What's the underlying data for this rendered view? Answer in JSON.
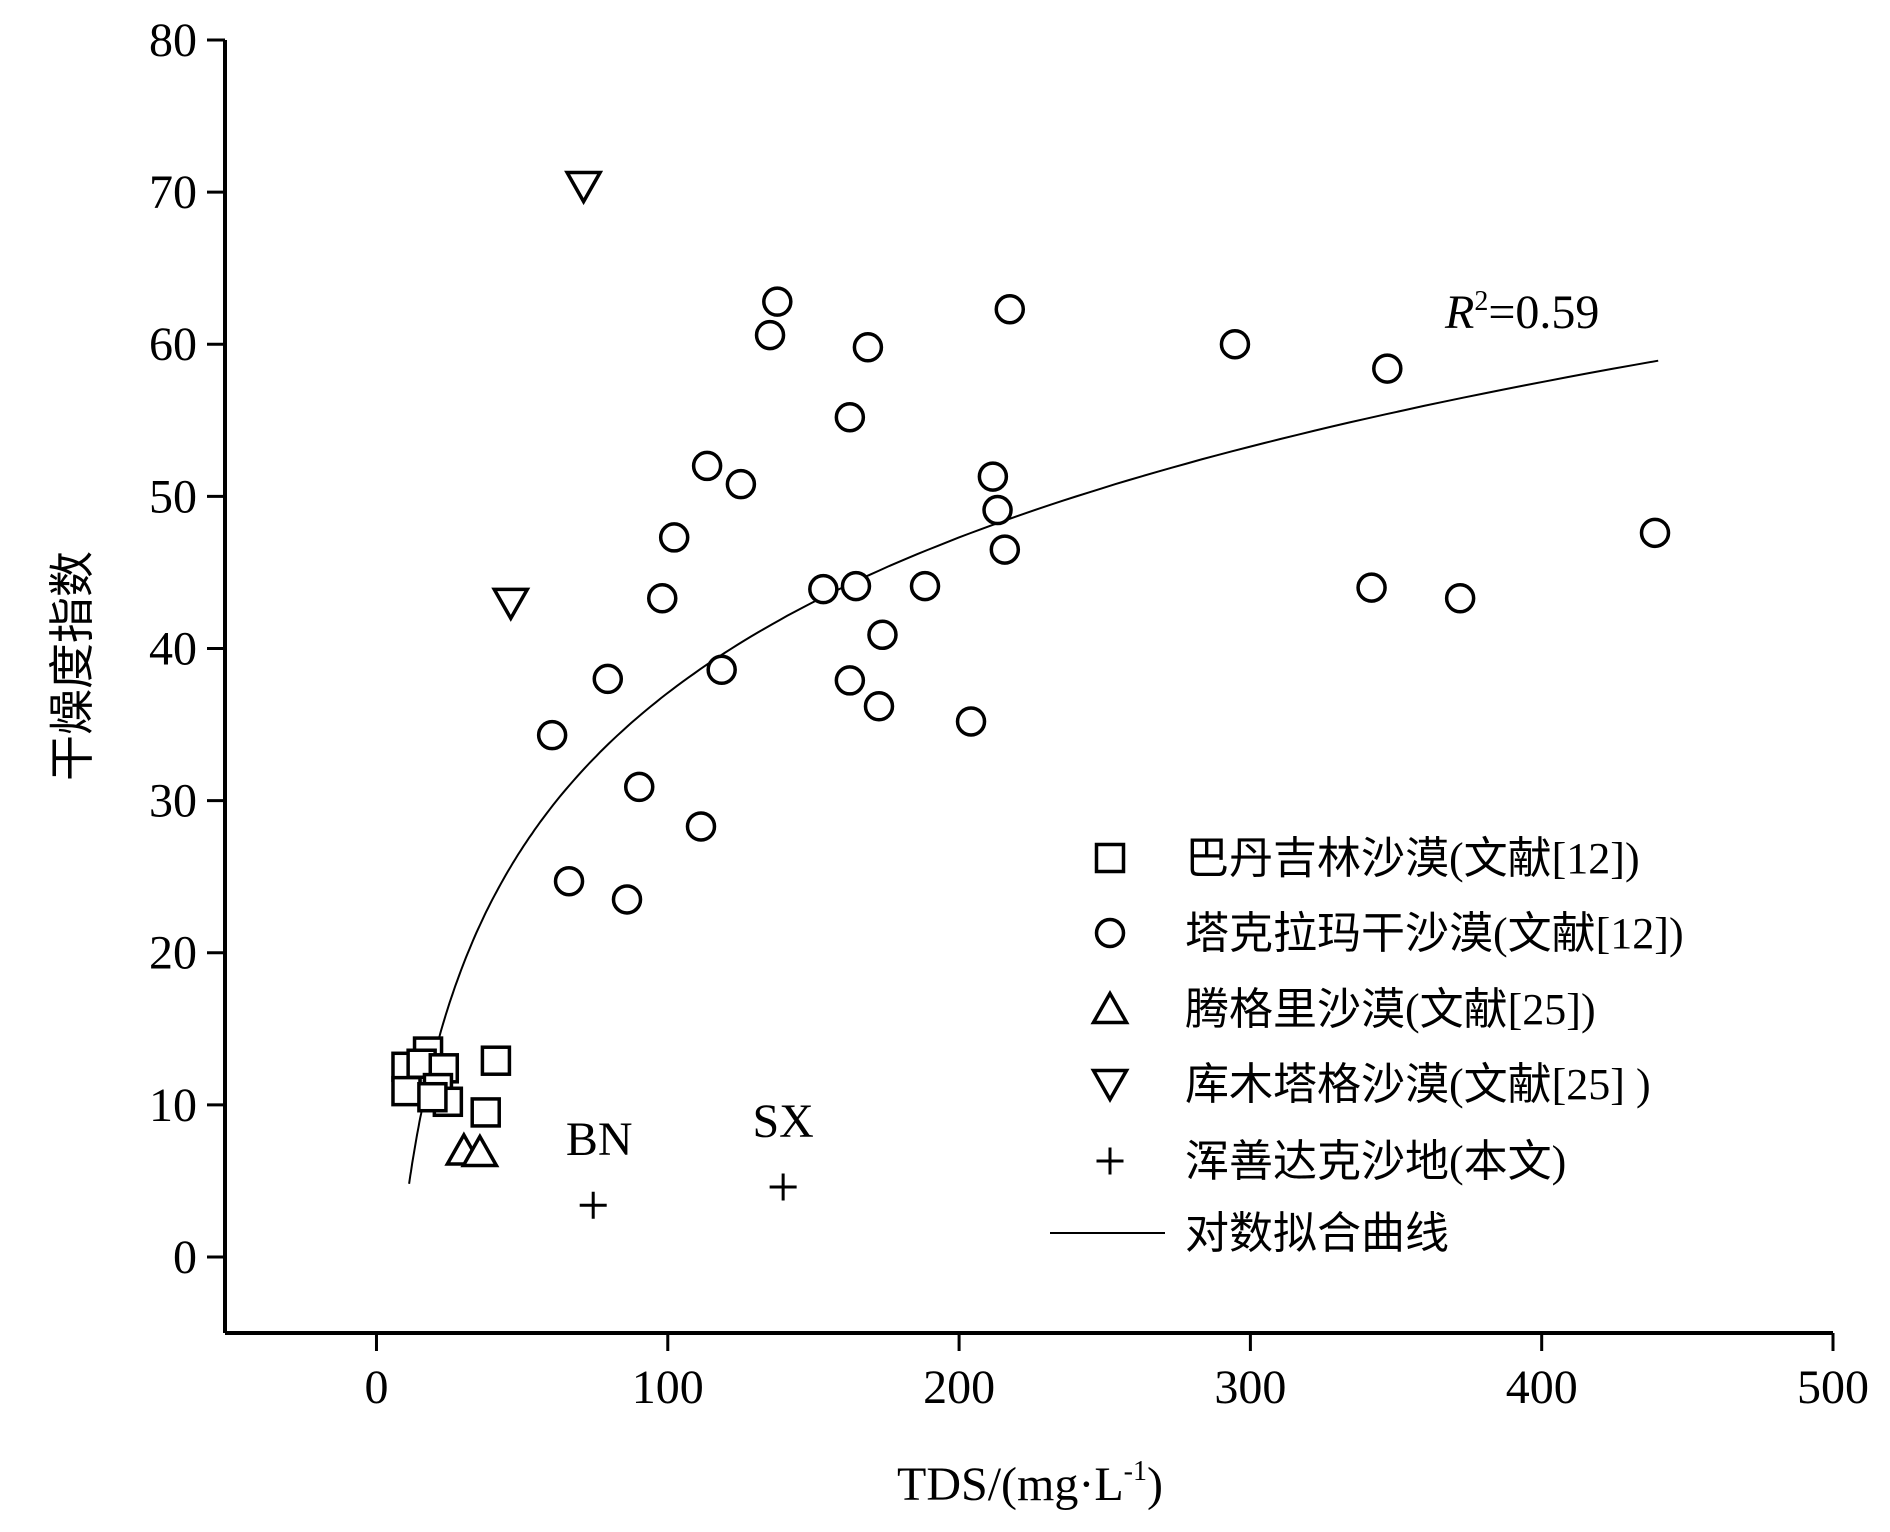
{
  "chart_data": {
    "type": "scatter",
    "title": "",
    "xlabel": "TDS/(mg·L",
    "xlabel_sup": "-1",
    "xlabel_end": ")",
    "ylabel": "干燥度指数",
    "xlim": [
      -52,
      500
    ],
    "ylim": [
      -5,
      80
    ],
    "xticks": [
      0,
      100,
      200,
      300,
      400,
      500
    ],
    "yticks": [
      0,
      10,
      20,
      30,
      40,
      50,
      60,
      70,
      80
    ],
    "grid": false,
    "legend_position": "bottom-right",
    "series": [
      {
        "name": "巴丹吉林沙漠(文献[12])",
        "marker": "square",
        "points": [
          [
            10.3,
            12.5
          ],
          [
            10.3,
            10.9
          ],
          [
            17.7,
            13.5
          ],
          [
            15.5,
            12.7
          ],
          [
            23.1,
            12.4
          ],
          [
            21.1,
            11.1
          ],
          [
            24.5,
            10.2
          ],
          [
            19.2,
            10.5
          ],
          [
            41,
            12.9
          ],
          [
            37.5,
            9.5
          ]
        ]
      },
      {
        "name": "塔克拉玛干沙漠(文献[12])",
        "marker": "circle",
        "points": [
          [
            137.6,
            62.8
          ],
          [
            135.1,
            60.6
          ],
          [
            217.4,
            62.3
          ],
          [
            168.7,
            59.8
          ],
          [
            294.7,
            60.0
          ],
          [
            347,
            58.4
          ],
          [
            162.5,
            55.2
          ],
          [
            113.5,
            52.0
          ],
          [
            125.1,
            50.8
          ],
          [
            211.6,
            51.3
          ],
          [
            213.2,
            49.1
          ],
          [
            102.2,
            47.3
          ],
          [
            215.7,
            46.5
          ],
          [
            438.9,
            47.6
          ],
          [
            98.1,
            43.3
          ],
          [
            153.4,
            43.9
          ],
          [
            164.6,
            44.1
          ],
          [
            188.3,
            44.1
          ],
          [
            341.6,
            44.0
          ],
          [
            372,
            43.3
          ],
          [
            173.7,
            40.9
          ],
          [
            118.5,
            38.6
          ],
          [
            79.4,
            38.0
          ],
          [
            162.5,
            37.9
          ],
          [
            172.5,
            36.2
          ],
          [
            204.1,
            35.2
          ],
          [
            60.3,
            34.3
          ],
          [
            90.2,
            30.9
          ],
          [
            111.4,
            28.3
          ],
          [
            66.1,
            24.7
          ],
          [
            86,
            23.5
          ]
        ]
      },
      {
        "name": "腾格里沙漠(文献[25])",
        "marker": "triangle-up",
        "points": [
          [
            30,
            7.0
          ],
          [
            35.5,
            6.9
          ]
        ]
      },
      {
        "name": "库木塔格沙漠(文献[25] )",
        "marker": "triangle-down",
        "points": [
          [
            71.1,
            70.4
          ],
          [
            46.1,
            43.0
          ]
        ]
      },
      {
        "name": "浑善达克沙地(本文)",
        "marker": "plus",
        "points": [
          [
            74.4,
            3.4
          ],
          [
            139.6,
            4.6
          ]
        ],
        "labels": [
          "BN",
          "SX"
        ]
      }
    ],
    "fit": {
      "name": "对数拟合曲线",
      "type": "log",
      "a": 14.74,
      "b": -30.8,
      "x_range": [
        11.2,
        440
      ],
      "r2_label": "R",
      "r2_sup": "2",
      "r2_value": "=0.59"
    }
  }
}
